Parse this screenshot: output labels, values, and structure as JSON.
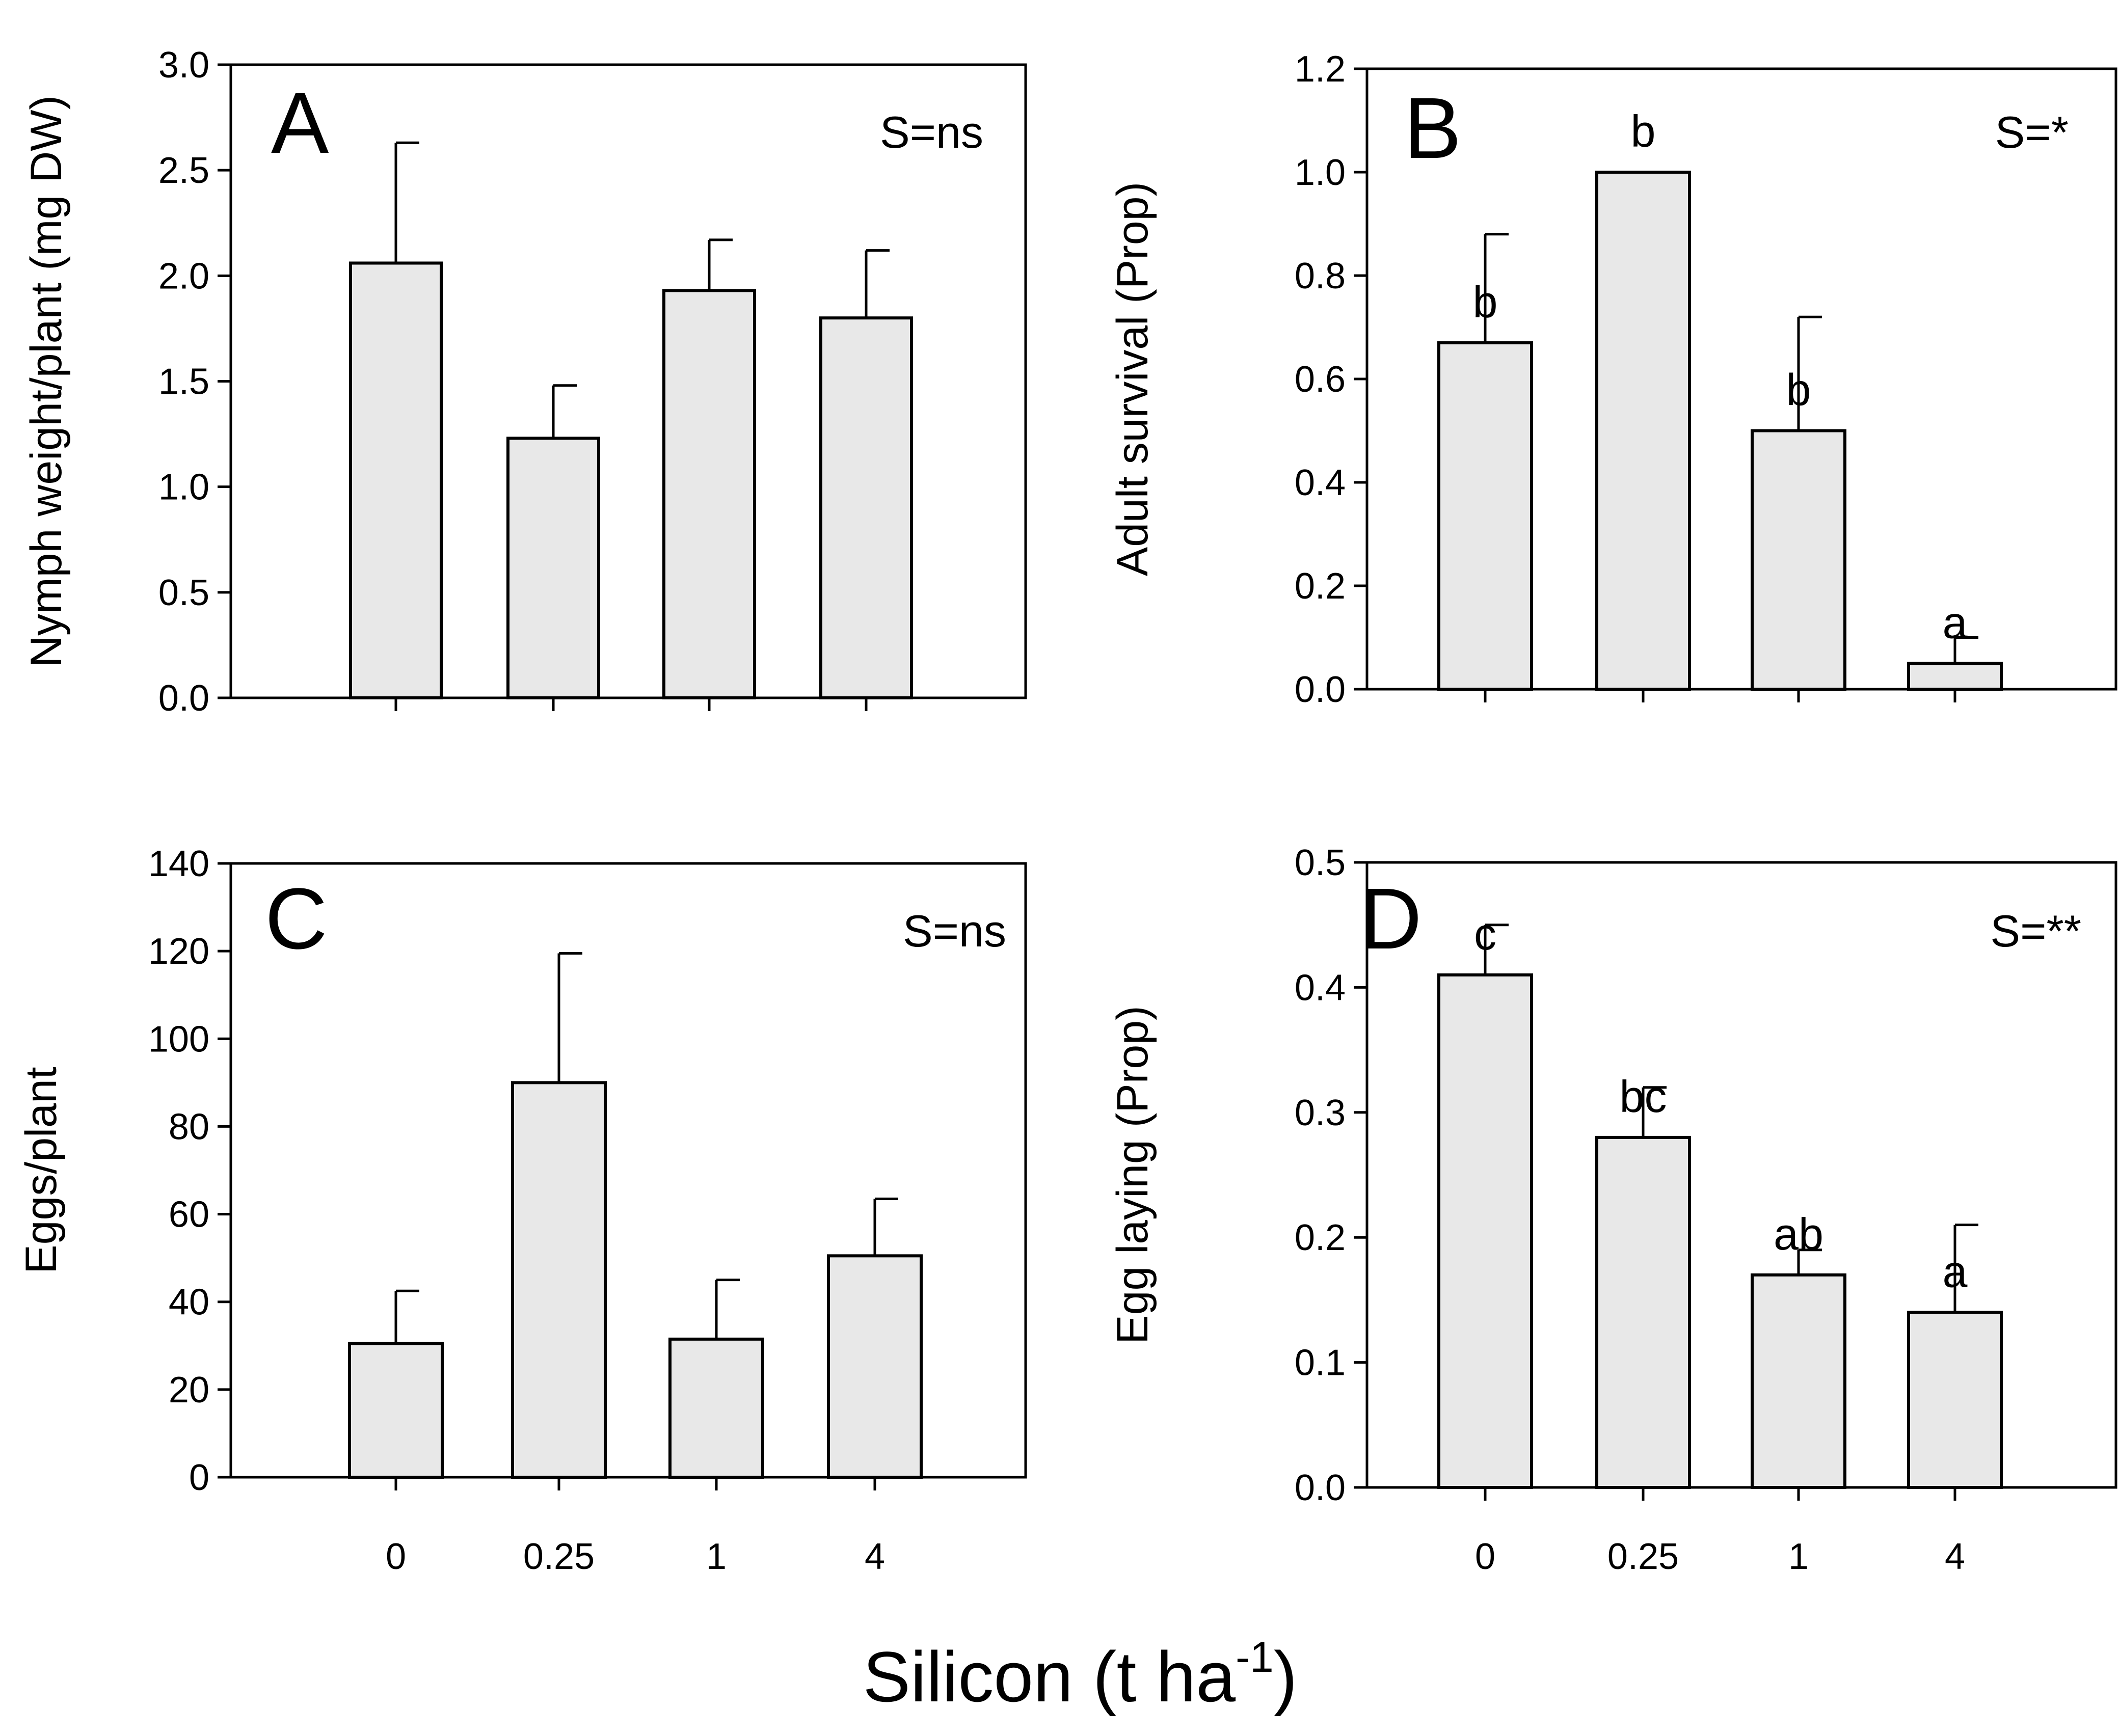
{
  "figure": {
    "xlabel_main": "Silicon (t ha",
    "xlabel_sup": "-1",
    "xlabel_close": ")"
  },
  "style": {
    "bar_fill": "#e8e8e8",
    "line": "#000000",
    "background": "#ffffff"
  },
  "chart_data": [
    {
      "id": "A",
      "type": "bar",
      "panel_label": "A",
      "significance": "S=ns",
      "categories": [
        "0",
        "0.25",
        "1",
        "4"
      ],
      "values": [
        2.06,
        1.23,
        1.93,
        1.8
      ],
      "error_upper": [
        2.63,
        1.48,
        2.17,
        2.12
      ],
      "letters": [
        "",
        "",
        "",
        ""
      ],
      "ylabel": "Nymph weight/plant (mg DW)",
      "ylim": [
        0,
        3.0
      ],
      "yticks": [
        "0.0",
        "0.5",
        "1.0",
        "1.5",
        "2.0",
        "2.5",
        "3.0"
      ],
      "show_xtick_labels": false
    },
    {
      "id": "B",
      "type": "bar",
      "panel_label": "B",
      "significance": "S=*",
      "categories": [
        "0",
        "0.25",
        "1",
        "4"
      ],
      "values": [
        0.67,
        1.0,
        0.5,
        0.05
      ],
      "error_upper": [
        0.88,
        1.0,
        0.72,
        0.1
      ],
      "letters": [
        "b",
        "b",
        "b",
        "a"
      ],
      "ylabel": "Adult survival (Prop)",
      "ylim": [
        0,
        1.2
      ],
      "yticks": [
        "0.0",
        "0.2",
        "0.4",
        "0.6",
        "0.8",
        "1.0",
        "1.2"
      ],
      "show_xtick_labels": false
    },
    {
      "id": "C",
      "type": "bar",
      "panel_label": "C",
      "significance": "S=ns",
      "categories": [
        "0",
        "0.25",
        "1",
        "4"
      ],
      "values": [
        30.5,
        90,
        31.5,
        50.5
      ],
      "error_upper": [
        42.5,
        119.5,
        45,
        63.5
      ],
      "letters": [
        "",
        "",
        "",
        ""
      ],
      "ylabel": "Eggs/plant",
      "ylim": [
        0,
        140
      ],
      "yticks": [
        "0",
        "20",
        "40",
        "60",
        "80",
        "100",
        "120",
        "140"
      ],
      "show_xtick_labels": true
    },
    {
      "id": "D",
      "type": "bar",
      "panel_label": "D",
      "significance": "S=**",
      "categories": [
        "0",
        "0.25",
        "1",
        "4"
      ],
      "values": [
        0.41,
        0.28,
        0.17,
        0.14
      ],
      "error_upper": [
        0.45,
        0.32,
        0.19,
        0.21
      ],
      "letters": [
        "c",
        "bc",
        "ab",
        "a"
      ],
      "ylabel": "Egg laying (Prop)",
      "ylim": [
        0,
        0.5
      ],
      "yticks": [
        "0.0",
        "0.1",
        "0.2",
        "0.3",
        "0.4",
        "0.5"
      ],
      "show_xtick_labels": true
    }
  ]
}
